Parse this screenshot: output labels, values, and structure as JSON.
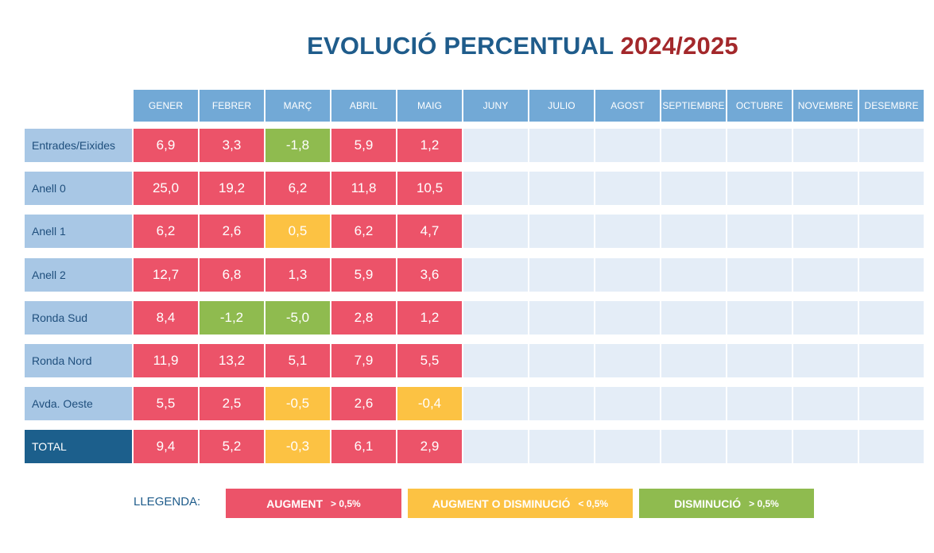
{
  "title": {
    "part1": "EVOLUCIÓ PERCENTUAL",
    "part2": "2024/2025"
  },
  "colors": {
    "title_blue": "#1f5c8b",
    "title_red": "#a3282b",
    "header": "#72a9d6",
    "row_label": "#a8c7e5",
    "total_label": "#1c5f8c",
    "empty_cell": "#e4edf7",
    "red": "#ec5369",
    "yellow": "#fcc243",
    "green": "#8fbb4f"
  },
  "chart_data": {
    "type": "table",
    "columns": [
      "GENER",
      "FEBRER",
      "MARÇ",
      "ABRIL",
      "MAIG",
      "JUNY",
      "JULIO",
      "AGOST",
      "SEPTIEMBRE",
      "OCTUBRE",
      "NOVEMBRE",
      "DESEMBRE"
    ],
    "rows": [
      {
        "label": "Entrades/Eixides",
        "values": [
          "6,9",
          "3,3",
          "-1,8",
          "5,9",
          "1,2"
        ],
        "categories": [
          "red",
          "red",
          "green",
          "red",
          "red"
        ],
        "total": false
      },
      {
        "label": "Anell 0",
        "values": [
          "25,0",
          "19,2",
          "6,2",
          "11,8",
          "10,5"
        ],
        "categories": [
          "red",
          "red",
          "red",
          "red",
          "red"
        ],
        "total": false
      },
      {
        "label": "Anell 1",
        "values": [
          "6,2",
          "2,6",
          "0,5",
          "6,2",
          "4,7"
        ],
        "categories": [
          "red",
          "red",
          "yellow",
          "red",
          "red"
        ],
        "total": false
      },
      {
        "label": "Anell 2",
        "values": [
          "12,7",
          "6,8",
          "1,3",
          "5,9",
          "3,6"
        ],
        "categories": [
          "red",
          "red",
          "red",
          "red",
          "red"
        ],
        "total": false
      },
      {
        "label": "Ronda Sud",
        "values": [
          "8,4",
          "-1,2",
          "-5,0",
          "2,8",
          "1,2"
        ],
        "categories": [
          "red",
          "green",
          "green",
          "red",
          "red"
        ],
        "total": false
      },
      {
        "label": "Ronda Nord",
        "values": [
          "11,9",
          "13,2",
          "5,1",
          "7,9",
          "5,5"
        ],
        "categories": [
          "red",
          "red",
          "red",
          "red",
          "red"
        ],
        "total": false
      },
      {
        "label": "Avda. Oeste",
        "values": [
          "5,5",
          "2,5",
          "-0,5",
          "2,6",
          "-0,4"
        ],
        "categories": [
          "red",
          "red",
          "yellow",
          "red",
          "yellow"
        ],
        "total": false
      },
      {
        "label": "TOTAL",
        "values": [
          "9,4",
          "5,2",
          "-0,3",
          "6,1",
          "2,9"
        ],
        "categories": [
          "red",
          "red",
          "yellow",
          "red",
          "red"
        ],
        "total": true
      }
    ]
  },
  "legend": {
    "label": "LLEGENDA:",
    "items": [
      {
        "text": "AUGMENT",
        "threshold": "> 0,5%",
        "category": "red"
      },
      {
        "text": "AUGMENT O DISMINUCIÓ",
        "threshold": "< 0,5%",
        "category": "yellow"
      },
      {
        "text": "DISMINUCIÓ",
        "threshold": "> 0,5%",
        "category": "green"
      }
    ]
  }
}
